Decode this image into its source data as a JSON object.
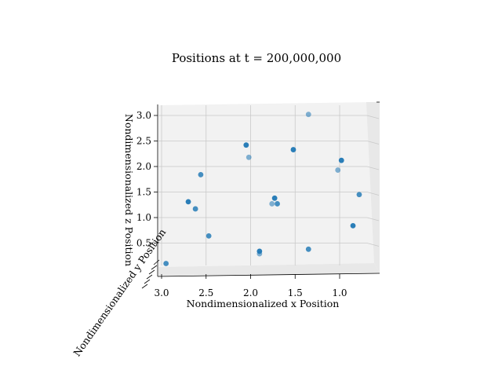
{
  "chart_data": {
    "type": "scatter",
    "projection": "3d",
    "title": "Positions at t = 200,000,000",
    "xlabel": "Nondimensionalized x Position",
    "ylabel": "Nondimensionalized y Position",
    "zlabel": "Nondimensionalized z Position",
    "x_ticks": [
      "3.0",
      "2.5",
      "2.0",
      "1.5",
      "1.0"
    ],
    "z_ticks": [
      "0.5",
      "1.0",
      "1.5",
      "2.0",
      "2.5",
      "3.0"
    ],
    "xlim": [
      3.0,
      0.65
    ],
    "zlim": [
      0.0,
      3.3
    ],
    "grid": true,
    "marker_color": "#1f77b4",
    "points": [
      {
        "x": 2.05,
        "z": 2.42,
        "depth": "front"
      },
      {
        "x": 2.02,
        "z": 2.18,
        "depth": "back"
      },
      {
        "x": 2.56,
        "z": 1.84,
        "depth": "mid"
      },
      {
        "x": 1.35,
        "z": 3.02,
        "depth": "back"
      },
      {
        "x": 1.52,
        "z": 2.33,
        "depth": "front"
      },
      {
        "x": 0.98,
        "z": 2.12,
        "depth": "front"
      },
      {
        "x": 1.02,
        "z": 1.93,
        "depth": "back"
      },
      {
        "x": 2.7,
        "z": 1.31,
        "depth": "front"
      },
      {
        "x": 2.62,
        "z": 1.17,
        "depth": "mid"
      },
      {
        "x": 1.73,
        "z": 1.38,
        "depth": "front"
      },
      {
        "x": 1.76,
        "z": 1.27,
        "depth": "back"
      },
      {
        "x": 1.7,
        "z": 1.27,
        "depth": "mid"
      },
      {
        "x": 0.78,
        "z": 1.45,
        "depth": "mid"
      },
      {
        "x": 0.85,
        "z": 0.84,
        "depth": "front"
      },
      {
        "x": 2.47,
        "z": 0.64,
        "depth": "mid"
      },
      {
        "x": 1.9,
        "z": 0.34,
        "depth": "front"
      },
      {
        "x": 1.9,
        "z": 0.29,
        "depth": "back"
      },
      {
        "x": 1.35,
        "z": 0.38,
        "depth": "mid"
      },
      {
        "x": 2.95,
        "z": 0.1,
        "depth": "mid"
      }
    ]
  }
}
